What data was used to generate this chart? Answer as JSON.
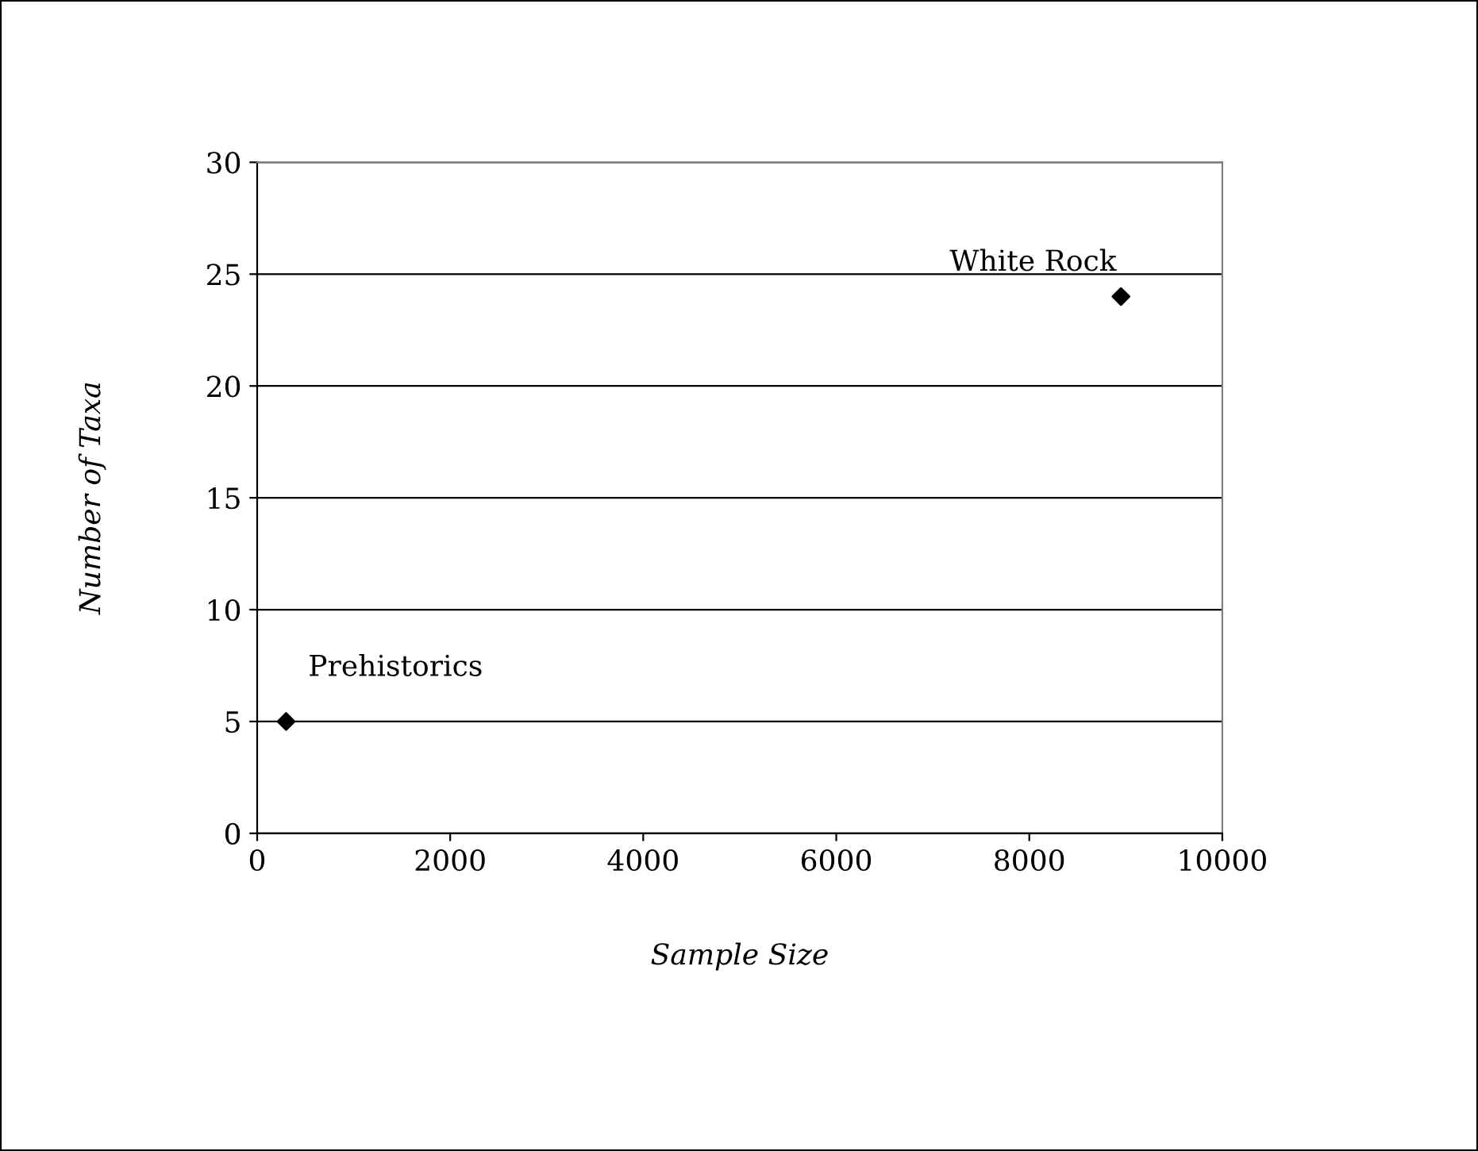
{
  "chart_data": {
    "type": "scatter",
    "xlabel": "Sample Size",
    "ylabel": "Number of Taxa",
    "x": [
      300,
      8950
    ],
    "series": [
      {
        "color": "#000000",
        "values": [
          5,
          24
        ]
      }
    ],
    "marker": "diamond",
    "grid": "y",
    "xlim": [
      0,
      10000
    ],
    "xticks": [
      0,
      2000,
      4000,
      6000,
      8000,
      10000
    ],
    "ylim": [
      0,
      30
    ],
    "yticks": [
      0,
      5,
      10,
      15,
      20,
      25,
      30
    ],
    "annotations": [
      {
        "text": "Prehistorics",
        "x": 300,
        "y": 5
      },
      {
        "text": "White Rock",
        "x": 8950,
        "y": 24
      }
    ]
  }
}
